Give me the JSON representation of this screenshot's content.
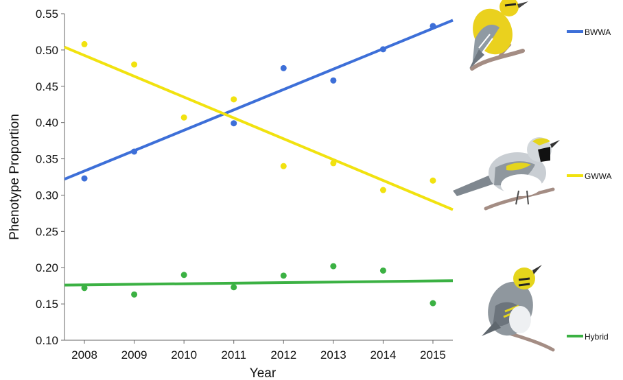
{
  "chart_data": {
    "type": "scatter",
    "title": "",
    "xlabel": "Year",
    "ylabel": "Phenotype Proportion",
    "x": [
      2008,
      2009,
      2010,
      2011,
      2012,
      2013,
      2014,
      2015
    ],
    "xlim": [
      2007.6,
      2015.4
    ],
    "ylim": [
      0.1,
      0.55
    ],
    "yticks": [
      "0.10",
      "0.15",
      "0.20",
      "0.25",
      "0.30",
      "0.35",
      "0.40",
      "0.45",
      "0.50",
      "0.55"
    ],
    "xticks": [
      "2008",
      "2009",
      "2010",
      "2011",
      "2012",
      "2013",
      "2014",
      "2015"
    ],
    "grid": false,
    "legend_position": "right",
    "series": [
      {
        "name": "BWWA",
        "color": "#3d6fd8",
        "values": [
          0.323,
          0.36,
          null,
          0.399,
          0.475,
          0.458,
          0.501,
          0.533
        ],
        "trend": [
          0.322,
          0.541
        ]
      },
      {
        "name": "GWWA",
        "color": "#f1e20f",
        "values": [
          0.508,
          0.48,
          0.407,
          0.432,
          0.34,
          0.344,
          0.307,
          0.32
        ],
        "trend": [
          0.504,
          0.28
        ]
      },
      {
        "name": "Hybrid",
        "color": "#3bb143",
        "values": [
          0.172,
          0.163,
          0.19,
          0.173,
          0.189,
          0.202,
          0.196,
          0.151
        ],
        "trend": [
          0.176,
          0.182
        ]
      }
    ],
    "illustrations": [
      "yellow-bird-icon",
      "gray-bird-icon",
      "hybrid-bird-icon"
    ]
  }
}
